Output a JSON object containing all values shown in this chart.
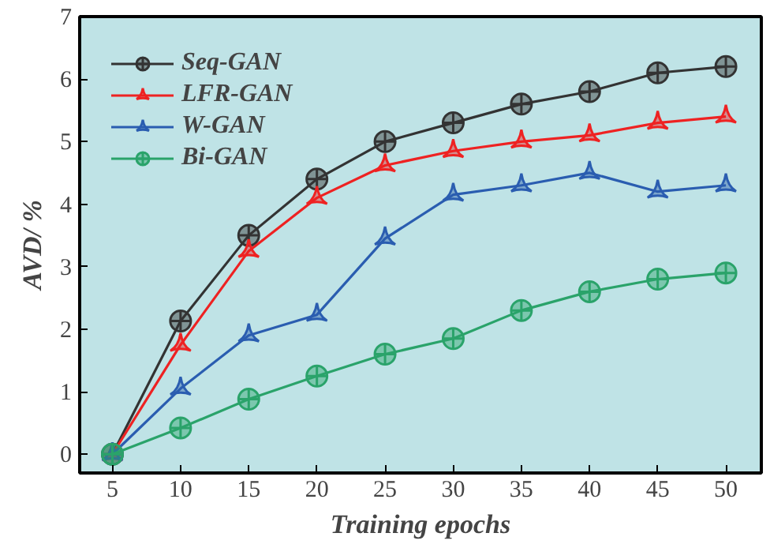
{
  "chart_data": {
    "type": "line",
    "xlabel": "Training epochs",
    "ylabel": "AVD/ %",
    "x": [
      5,
      10,
      15,
      20,
      25,
      30,
      35,
      40,
      45,
      50
    ],
    "series": [
      {
        "name": "Seq-GAN",
        "color": "#333333",
        "marker": "circle",
        "values": [
          0,
          2.13,
          3.5,
          4.4,
          5.0,
          5.3,
          5.6,
          5.8,
          6.1,
          6.2
        ]
      },
      {
        "name": "LFR-GAN",
        "color": "#ee2222",
        "marker": "triangle",
        "values": [
          0,
          1.75,
          3.25,
          4.1,
          4.62,
          4.85,
          5.0,
          5.1,
          5.3,
          5.4
        ]
      },
      {
        "name": "W-GAN",
        "color": "#2a5db0",
        "marker": "triangle",
        "values": [
          0,
          1.05,
          1.9,
          2.23,
          3.45,
          4.15,
          4.3,
          4.5,
          4.2,
          4.3
        ]
      },
      {
        "name": "Bi-GAN",
        "color": "#2aa36a",
        "marker": "circle",
        "values": [
          0,
          0.42,
          0.88,
          1.25,
          1.6,
          1.85,
          2.3,
          2.6,
          2.8,
          2.9
        ]
      }
    ],
    "xlim": [
      2.6,
      52.6
    ],
    "ylim": [
      -0.3,
      7
    ],
    "xticks": [
      5,
      10,
      15,
      20,
      25,
      30,
      35,
      40,
      45,
      50
    ],
    "yticks": [
      0,
      1,
      2,
      3,
      4,
      5,
      6,
      7
    ],
    "legend": "top left",
    "grid": false
  }
}
